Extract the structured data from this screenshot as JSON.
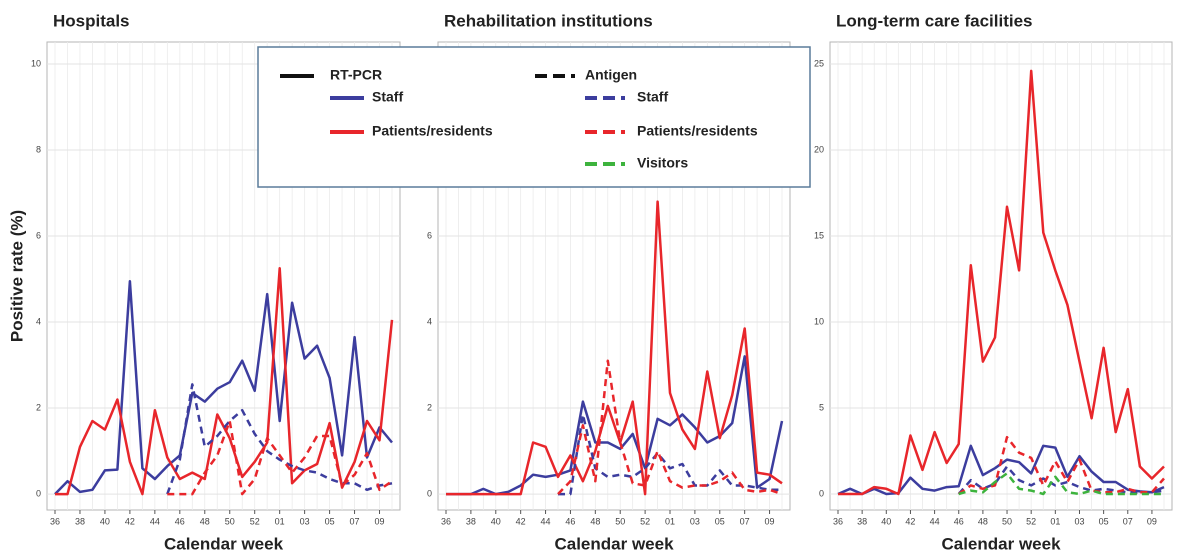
{
  "legend_groups": [
    {
      "title": "RT-PCR",
      "dashed": false
    },
    {
      "title": "Antigen",
      "dashed": true
    }
  ],
  "chart_data": [
    {
      "type": "line",
      "title": "Hospitals",
      "x_label": "Calendar week",
      "y_label": "Positive rate (%)",
      "categories": [
        "36",
        null,
        "38",
        null,
        "40",
        null,
        "42",
        null,
        "44",
        null,
        "46",
        null,
        "48",
        null,
        "50",
        null,
        "52",
        null,
        "01",
        null,
        "03",
        null,
        "05",
        null,
        "07",
        null,
        "09",
        null
      ],
      "ylim": [
        -0.37,
        10.51
      ],
      "yticks": [
        0,
        2,
        4,
        6,
        8,
        10
      ],
      "grid": true,
      "series": [
        {
          "name": "Staff",
          "dashed": false,
          "color": "#3c3d9e",
          "values": [
            0,
            0.3,
            0.05,
            0.1,
            0.55,
            0.57,
            4.95,
            0.6,
            0.35,
            0.65,
            0.9,
            2.35,
            2.15,
            2.45,
            2.6,
            3.1,
            2.4,
            4.65,
            1.7,
            4.45,
            3.15,
            3.45,
            2.7,
            0.9,
            3.65,
            0.85,
            1.55,
            1.2
          ]
        },
        {
          "name": "Patients/residents",
          "dashed": false,
          "color": "#e8262b",
          "values": [
            0,
            0,
            1.1,
            1.7,
            1.5,
            2.2,
            0.75,
            0,
            1.95,
            0.85,
            0.35,
            0.5,
            0.35,
            1.85,
            1.3,
            0.4,
            0.75,
            1.2,
            5.25,
            0.25,
            0.55,
            0.7,
            1.65,
            0.15,
            0.75,
            1.7,
            1.25,
            4.05
          ]
        },
        {
          "name": "Staff",
          "dashed": true,
          "color": "#3c3d9e",
          "values": [
            null,
            null,
            null,
            null,
            null,
            null,
            null,
            null,
            null,
            0,
            0.8,
            2.55,
            1.1,
            1.35,
            1.7,
            1.95,
            1.4,
            1.0,
            0.8,
            0.65,
            0.55,
            0.5,
            0.35,
            0.25,
            0.25,
            0.1,
            0.2,
            0.25
          ]
        },
        {
          "name": "Patients/residents",
          "dashed": true,
          "color": "#e8262b",
          "values": [
            null,
            null,
            null,
            null,
            null,
            null,
            null,
            null,
            null,
            0,
            0,
            0,
            0.5,
            0.9,
            1.7,
            0,
            0.35,
            1.3,
            0.9,
            0.5,
            0.85,
            1.35,
            1.35,
            0.2,
            0.45,
            0.95,
            0.1,
            0.3
          ]
        }
      ]
    },
    {
      "type": "line",
      "title": "Rehabilitation institutions",
      "x_label": "Calendar week",
      "categories": [
        "36",
        null,
        "38",
        null,
        "40",
        null,
        "42",
        null,
        "44",
        null,
        "46",
        null,
        "48",
        null,
        "50",
        null,
        "52",
        null,
        "01",
        null,
        "03",
        null,
        "05",
        null,
        "07",
        null,
        "09",
        null
      ],
      "ylim": [
        -0.37,
        10.51
      ],
      "yticks": [
        0,
        2,
        4,
        6,
        8,
        10
      ],
      "grid": true,
      "series": [
        {
          "name": "Staff",
          "dashed": false,
          "color": "#3c3d9e",
          "values": [
            0,
            0,
            0,
            0.12,
            0,
            0.05,
            0.2,
            0.45,
            0.4,
            0.45,
            0.55,
            2.15,
            1.2,
            1.2,
            1.05,
            1.4,
            0.6,
            1.75,
            1.6,
            1.85,
            1.55,
            1.2,
            1.35,
            1.65,
            3.2,
            0.15,
            0.35,
            1.7
          ]
        },
        {
          "name": "Patients/residents",
          "dashed": false,
          "color": "#e8262b",
          "values": [
            0,
            0,
            0,
            0,
            0,
            0,
            0,
            1.2,
            1.1,
            0.4,
            0.9,
            0.3,
            1.0,
            2.05,
            1.2,
            2.15,
            0,
            6.8,
            2.35,
            1.5,
            1.05,
            2.85,
            1.3,
            2.3,
            3.85,
            0.5,
            0.45,
            0.25
          ]
        },
        {
          "name": "Staff",
          "dashed": true,
          "color": "#3c3d9e",
          "values": [
            null,
            null,
            null,
            null,
            null,
            null,
            null,
            null,
            null,
            0,
            0,
            1.85,
            0.6,
            0.4,
            0.45,
            0.4,
            0.6,
            0.95,
            0.6,
            0.7,
            0.2,
            0.2,
            0.55,
            0.2,
            0.2,
            0.15,
            0.1,
            0.1
          ]
        },
        {
          "name": "Patients/residents",
          "dashed": true,
          "color": "#e8262b",
          "values": [
            null,
            null,
            null,
            null,
            null,
            null,
            null,
            null,
            null,
            0,
            0.3,
            1.6,
            0.3,
            3.1,
            1.2,
            0.25,
            0.2,
            1.0,
            0.3,
            0.15,
            0.2,
            0.2,
            0.3,
            0.5,
            0.1,
            0.05,
            0.1,
            0
          ]
        }
      ]
    },
    {
      "type": "line",
      "title": "Long-term care facilities",
      "x_label": "Calendar week",
      "categories": [
        "36",
        null,
        "38",
        null,
        "40",
        null,
        "42",
        null,
        "44",
        null,
        "46",
        null,
        "48",
        null,
        "50",
        null,
        "52",
        null,
        "01",
        null,
        "03",
        null,
        "05",
        null,
        "07",
        null,
        "09",
        null
      ],
      "ylim": [
        -0.93,
        26.28
      ],
      "yticks": [
        0,
        5,
        10,
        15,
        20,
        25
      ],
      "grid": true,
      "series": [
        {
          "name": "Staff",
          "dashed": false,
          "color": "#3c3d9e",
          "values": [
            0,
            0.3,
            0,
            0.3,
            0,
            0.05,
            0.95,
            0.3,
            0.2,
            0.4,
            0.45,
            2.8,
            1.1,
            1.5,
            2.0,
            1.85,
            1.2,
            2.8,
            2.7,
            1.0,
            2.2,
            1.3,
            0.7,
            0.7,
            0.25,
            0.15,
            0.1,
            0.4
          ]
        },
        {
          "name": "Patients/residents",
          "dashed": false,
          "color": "#e8262b",
          "values": [
            0,
            0,
            0,
            0.4,
            0.3,
            0,
            3.4,
            1.4,
            3.6,
            1.8,
            2.9,
            13.3,
            7.7,
            9.1,
            16.7,
            13.0,
            24.6,
            15.2,
            13.0,
            11.0,
            7.7,
            4.4,
            8.5,
            3.6,
            6.1,
            1.6,
            0.9,
            1.6
          ]
        },
        {
          "name": "Staff",
          "dashed": true,
          "color": "#3c3d9e",
          "values": [
            null,
            null,
            null,
            null,
            null,
            null,
            null,
            null,
            null,
            null,
            0,
            0.8,
            0.3,
            0.6,
            1.6,
            0.8,
            0.5,
            0.9,
            0.5,
            0.7,
            0.4,
            0.2,
            0.3,
            0.2,
            0.1,
            0.05,
            0.1,
            0.2
          ]
        },
        {
          "name": "Patients/residents",
          "dashed": true,
          "color": "#e8262b",
          "values": [
            null,
            null,
            null,
            null,
            null,
            null,
            null,
            null,
            null,
            null,
            0,
            0.5,
            0.3,
            0.5,
            3.3,
            2.4,
            2.1,
            0.5,
            1.9,
            0.7,
            2.0,
            0.2,
            0.1,
            0.1,
            0.3,
            0.1,
            0.1,
            0.9
          ]
        },
        {
          "name": "Visitors",
          "dashed": true,
          "color": "#3db33d",
          "values": [
            null,
            null,
            null,
            null,
            null,
            null,
            null,
            null,
            null,
            null,
            0,
            0.2,
            0.1,
            0.7,
            1.2,
            0.3,
            0.2,
            0,
            1.0,
            0.1,
            0,
            0.2,
            0,
            0,
            0,
            0,
            0,
            0
          ]
        }
      ]
    }
  ]
}
